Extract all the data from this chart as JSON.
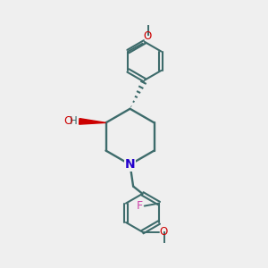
{
  "background_color": "#efefef",
  "bond_color": "#3d6b6b",
  "nitrogen_color": "#2200cc",
  "oxygen_color": "#cc0000",
  "fluorine_color": "#cc44aa",
  "figsize": [
    3.0,
    3.0
  ],
  "dpi": 100,
  "xlim": [
    0,
    10
  ],
  "ylim": [
    0,
    10
  ]
}
